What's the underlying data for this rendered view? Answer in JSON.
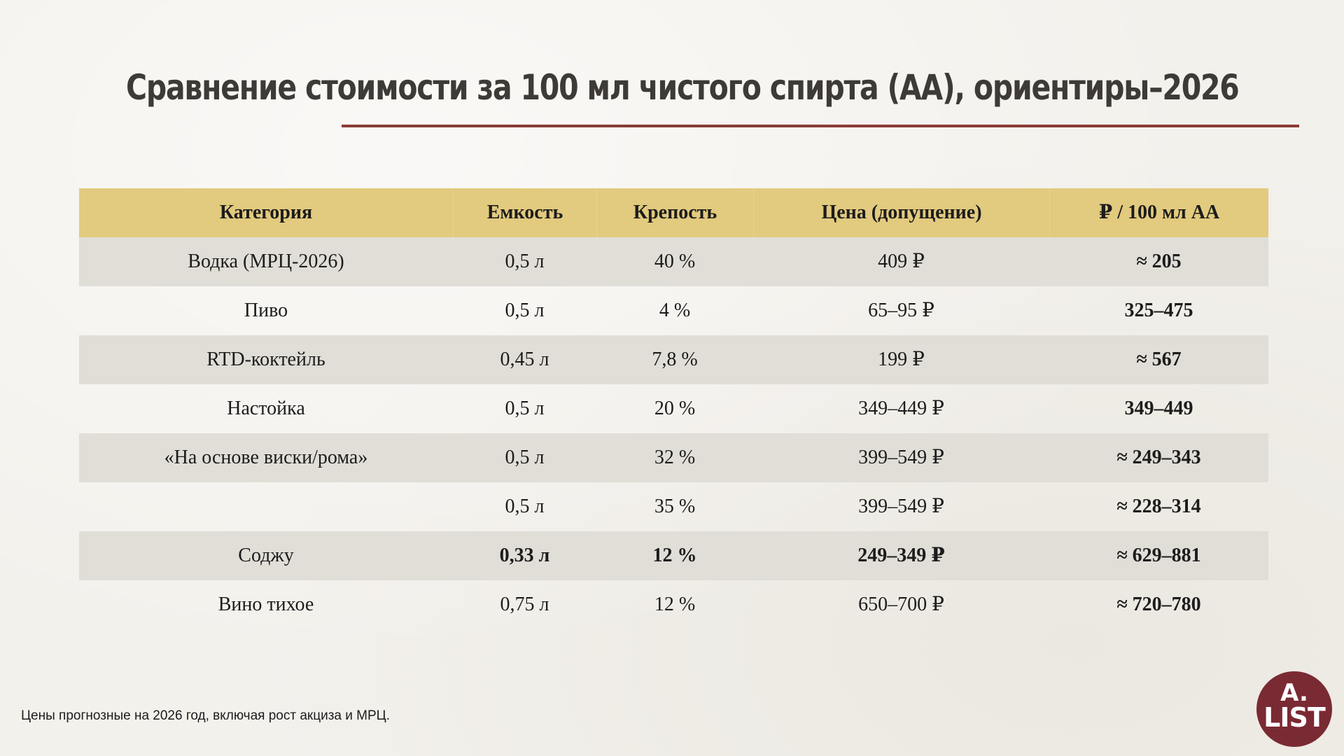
{
  "title": "Сравнение стоимости за 100 мл чистого спирта (АА), ориентиры–2026",
  "accent_color": "#8a3b36",
  "header_color": "#e2ca7e",
  "table": {
    "headers": [
      "Категория",
      "Емкость",
      "Крепость",
      "Цена (допущение)",
      "₽ / 100 мл АА"
    ],
    "rows": [
      {
        "category": "Водка (МРЦ-2026)",
        "volume": "0,5 л",
        "strength": "40  %",
        "price": "409  ₽",
        "per100": "≈ 205",
        "bold": false
      },
      {
        "category": "Пиво",
        "volume": "0,5 л",
        "strength": "4  %",
        "price": "65–95 ₽",
        "per100": "325–475",
        "bold": false
      },
      {
        "category": "RTD-коктейль",
        "volume": "0,45 л",
        "strength": "7,8  %",
        "price": "199  ₽",
        "per100": "≈ 567",
        "bold": false
      },
      {
        "category": "Настойка",
        "volume": "0,5 л",
        "strength": "20  %",
        "price": "349–449 ₽",
        "per100": "349–449",
        "bold": false
      },
      {
        "category": "«На основе виски/рома»",
        "volume": "0,5 л",
        "strength": "32  %",
        "price": "399–549 ₽",
        "per100": "≈ 249–343",
        "bold": false
      },
      {
        "category": "",
        "volume": "0,5 л",
        "strength": "35  %",
        "price": "399–549 ₽",
        "per100": "≈ 228–314",
        "bold": false
      },
      {
        "category": "Соджу",
        "volume": "0,33 л",
        "strength": "12  %",
        "price": "249–349 ₽",
        "per100": "≈ 629–881",
        "bold": true
      },
      {
        "category": "Вино тихое",
        "volume": "0,75 л",
        "strength": "12  %",
        "price": "650–700 ₽",
        "per100": "≈ 720–780",
        "bold": false
      }
    ]
  },
  "footnote": "Цены прогнозные на 2026 год, включая рост акциза и МРЦ.",
  "logo": {
    "line1": "A.",
    "line2": "LIST",
    "color": "#7a2a33"
  }
}
